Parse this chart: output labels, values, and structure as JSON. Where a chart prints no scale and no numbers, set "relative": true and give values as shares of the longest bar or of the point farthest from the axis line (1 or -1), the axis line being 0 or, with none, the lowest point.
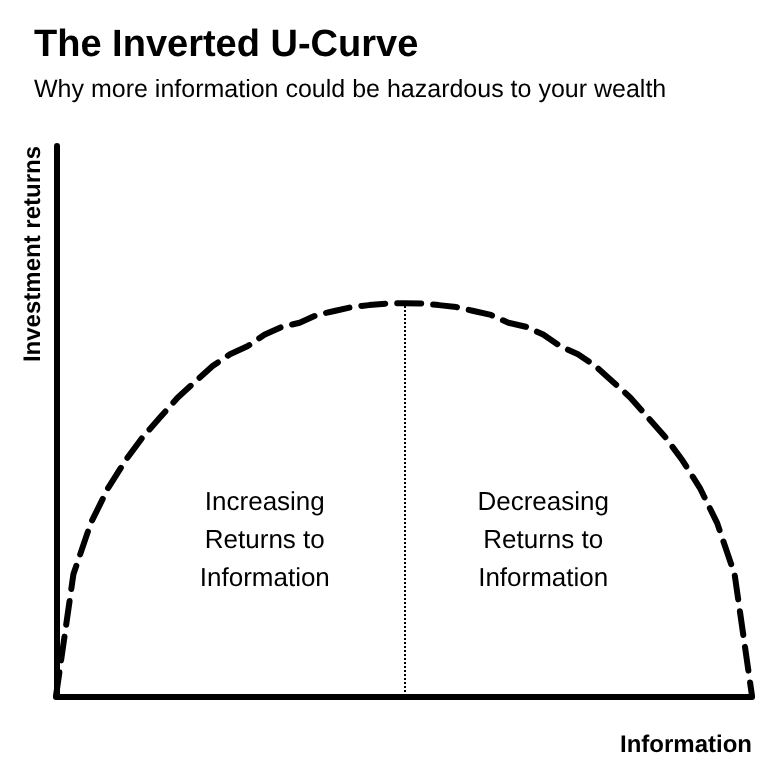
{
  "chart_data": {
    "type": "line",
    "title": "The Inverted U-Curve",
    "subtitle": "Why more information could be hazardous to your wealth",
    "xlabel": "Information",
    "ylabel": "Investment returns",
    "relative": true,
    "categories": [
      null,
      null,
      null,
      null,
      null,
      null,
      null,
      null,
      null,
      null,
      null,
      null,
      null,
      null,
      null,
      null,
      null,
      null,
      null,
      null,
      null,
      null,
      null,
      null,
      null,
      null,
      null,
      null,
      null,
      null,
      null,
      null,
      null,
      null,
      null,
      null,
      null,
      null,
      null,
      null,
      null
    ],
    "series": [
      {
        "color": "#000000",
        "values": [
          0,
          0.31,
          0.44,
          0.53,
          0.6,
          0.66,
          0.71,
          0.76,
          0.8,
          0.84,
          0.87,
          0.89,
          0.92,
          0.94,
          0.95,
          0.97,
          0.98,
          0.99,
          0.995,
          0.999,
          1,
          0.999,
          0.995,
          0.99,
          0.98,
          0.97,
          0.95,
          0.94,
          0.92,
          0.89,
          0.87,
          0.84,
          0.8,
          0.76,
          0.71,
          0.66,
          0.6,
          0.53,
          0.44,
          0.31,
          0
        ]
      }
    ],
    "line_style": "dashed",
    "marker": "none",
    "annotations": [
      "Increasing\nReturns to\nInformation",
      "Decreasing\nReturns to\nInformation"
    ]
  }
}
